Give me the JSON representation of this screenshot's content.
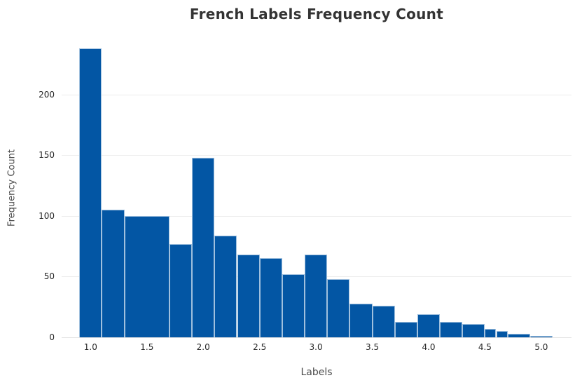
{
  "figure": {
    "title": "French Labels Frequency Count",
    "xlabel": "Labels",
    "ylabel": "Frequency Count"
  },
  "chart_data": {
    "type": "bar",
    "subtype": "histogram",
    "title": "French Labels Frequency Count",
    "xlabel": "Labels",
    "ylabel": "Frequency Count",
    "grid": true,
    "legend": "none",
    "background_color": "#ffffff",
    "bar_color": "#0356a4",
    "bar_edge_color": "#d6e4f2",
    "grid_color": "#ececec",
    "zero_line_color": "#e2e2e2",
    "title_color": "#333333",
    "axis_title_color": "#4a4a4a",
    "tick_label_color": "#262626",
    "xlim": [
      0.743,
      5.268
    ],
    "ylim": [
      0,
      246
    ],
    "xticks": [
      {
        "value": 1.0,
        "label": "1.0"
      },
      {
        "value": 1.5,
        "label": "1.5"
      },
      {
        "value": 2.0,
        "label": "2.0"
      },
      {
        "value": 2.5,
        "label": "2.5"
      },
      {
        "value": 3.0,
        "label": "3.0"
      },
      {
        "value": 3.5,
        "label": "3.5"
      },
      {
        "value": 4.0,
        "label": "4.0"
      },
      {
        "value": 4.5,
        "label": "4.5"
      },
      {
        "value": 5.0,
        "label": "5.0"
      }
    ],
    "yticks": [
      {
        "value": 0,
        "label": "0"
      },
      {
        "value": 50,
        "label": "50"
      },
      {
        "value": 100,
        "label": "100"
      },
      {
        "value": 150,
        "label": "150"
      },
      {
        "value": 200,
        "label": "200"
      }
    ],
    "bins": [
      {
        "range": [
          0.9,
          1.1
        ],
        "count": 238
      },
      {
        "range": [
          1.1,
          1.3
        ],
        "count": 105
      },
      {
        "range": [
          1.3,
          1.7
        ],
        "count": 100
      },
      {
        "range": [
          1.7,
          1.9
        ],
        "count": 77
      },
      {
        "range": [
          1.9,
          2.1
        ],
        "count": 148
      },
      {
        "range": [
          2.1,
          2.3
        ],
        "count": 84
      },
      {
        "range": [
          2.3,
          2.5
        ],
        "count": 68
      },
      {
        "range": [
          2.5,
          2.7
        ],
        "count": 65
      },
      {
        "range": [
          2.7,
          2.9
        ],
        "count": 52
      },
      {
        "range": [
          2.9,
          3.1
        ],
        "count": 68
      },
      {
        "range": [
          3.1,
          3.3
        ],
        "count": 48
      },
      {
        "range": [
          3.3,
          3.5
        ],
        "count": 28
      },
      {
        "range": [
          3.5,
          3.7
        ],
        "count": 26
      },
      {
        "range": [
          3.7,
          3.9
        ],
        "count": 13
      },
      {
        "range": [
          3.9,
          4.1
        ],
        "count": 19
      },
      {
        "range": [
          4.1,
          4.3
        ],
        "count": 13
      },
      {
        "range": [
          4.3,
          4.5
        ],
        "count": 11
      },
      {
        "range": [
          4.5,
          4.6
        ],
        "count": 7
      },
      {
        "range": [
          4.6,
          4.7
        ],
        "count": 5
      },
      {
        "range": [
          4.7,
          4.9
        ],
        "count": 3
      },
      {
        "range": [
          4.9,
          5.1
        ],
        "count": 1
      }
    ]
  }
}
